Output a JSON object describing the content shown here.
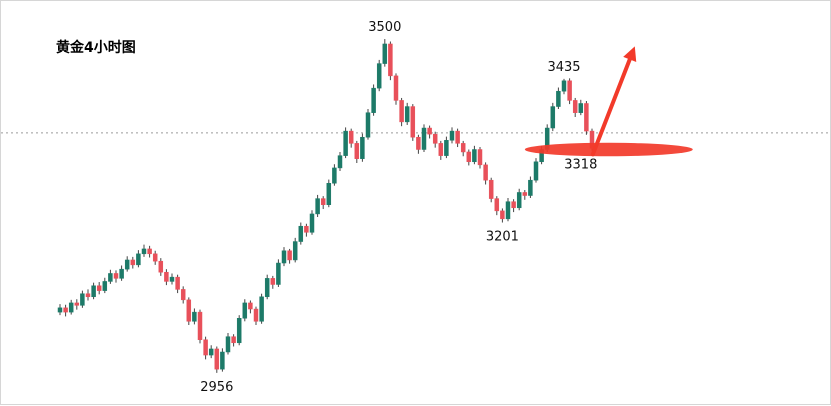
{
  "header": {
    "title": "黄金4小时图"
  },
  "chart_data": {
    "type": "candlestick",
    "title": "黄金4小时图",
    "ylim": [
      2902,
      3562
    ],
    "current_price_line": 3347,
    "colors": {
      "up": "#1d7a68",
      "down": "#e8505a",
      "wick": "#444444",
      "highlight": "#f23a2a",
      "dotted_line": "#9a9a9a",
      "label_text": "#111111"
    },
    "price_labels": [
      {
        "text": "3500",
        "candle": 58,
        "price": 3500,
        "position": "above"
      },
      {
        "text": "3435",
        "candle": 90,
        "price": 3435,
        "position": "above"
      },
      {
        "text": "3318",
        "candle": 93,
        "price": 3318,
        "position": "below"
      },
      {
        "text": "3201",
        "candle": 79,
        "price": 3201,
        "position": "below"
      },
      {
        "text": "2956",
        "candle": 28,
        "price": 2956,
        "position": "below"
      }
    ],
    "highlight": {
      "ellipse": {
        "center_candle": 98,
        "center_price": 3320,
        "rx_candles": 15,
        "ry_price": 11
      },
      "arrow": {
        "start_candle": 95.5,
        "start_price": 3312,
        "end_candle": 103,
        "end_price": 3488
      }
    },
    "candles": [
      [
        3055,
        3068,
        3050,
        3062
      ],
      [
        3062,
        3067,
        3048,
        3055
      ],
      [
        3055,
        3075,
        3051,
        3070
      ],
      [
        3070,
        3076,
        3059,
        3066
      ],
      [
        3066,
        3090,
        3062,
        3085
      ],
      [
        3085,
        3092,
        3074,
        3080
      ],
      [
        3080,
        3103,
        3076,
        3098
      ],
      [
        3098,
        3104,
        3084,
        3090
      ],
      [
        3090,
        3111,
        3086,
        3105
      ],
      [
        3105,
        3124,
        3101,
        3118
      ],
      [
        3118,
        3123,
        3103,
        3110
      ],
      [
        3110,
        3131,
        3106,
        3125
      ],
      [
        3125,
        3146,
        3121,
        3140
      ],
      [
        3140,
        3145,
        3126,
        3132
      ],
      [
        3132,
        3156,
        3128,
        3150
      ],
      [
        3150,
        3165,
        3145,
        3158
      ],
      [
        3158,
        3163,
        3144,
        3150
      ],
      [
        3150,
        3155,
        3132,
        3138
      ],
      [
        3138,
        3143,
        3114,
        3120
      ],
      [
        3120,
        3125,
        3099,
        3105
      ],
      [
        3105,
        3118,
        3100,
        3112
      ],
      [
        3112,
        3116,
        3086,
        3092
      ],
      [
        3092,
        3097,
        3069,
        3075
      ],
      [
        3075,
        3079,
        3034,
        3040
      ],
      [
        3040,
        3061,
        3035,
        3055
      ],
      [
        3055,
        3059,
        3004,
        3010
      ],
      [
        3010,
        3015,
        2978,
        2985
      ],
      [
        2985,
        3001,
        2980,
        2995
      ],
      [
        2995,
        2999,
        2956,
        2962
      ],
      [
        2962,
        2996,
        2958,
        2990
      ],
      [
        2990,
        3021,
        2986,
        3015
      ],
      [
        3015,
        3019,
        2999,
        3005
      ],
      [
        3005,
        3050,
        3001,
        3045
      ],
      [
        3045,
        3076,
        3040,
        3070
      ],
      [
        3070,
        3074,
        3053,
        3060
      ],
      [
        3060,
        3064,
        3034,
        3040
      ],
      [
        3040,
        3085,
        3036,
        3080
      ],
      [
        3080,
        3116,
        3076,
        3110
      ],
      [
        3110,
        3114,
        3093,
        3100
      ],
      [
        3100,
        3141,
        3096,
        3135
      ],
      [
        3135,
        3161,
        3130,
        3155
      ],
      [
        3155,
        3158,
        3134,
        3140
      ],
      [
        3140,
        3176,
        3136,
        3170
      ],
      [
        3170,
        3201,
        3165,
        3195
      ],
      [
        3195,
        3199,
        3178,
        3185
      ],
      [
        3185,
        3221,
        3181,
        3215
      ],
      [
        3215,
        3246,
        3210,
        3240
      ],
      [
        3240,
        3244,
        3223,
        3230
      ],
      [
        3230,
        3271,
        3226,
        3265
      ],
      [
        3265,
        3296,
        3261,
        3290
      ],
      [
        3290,
        3316,
        3285,
        3310
      ],
      [
        3310,
        3356,
        3306,
        3350
      ],
      [
        3350,
        3354,
        3323,
        3330
      ],
      [
        3330,
        3334,
        3298,
        3305
      ],
      [
        3305,
        3346,
        3300,
        3340
      ],
      [
        3340,
        3386,
        3336,
        3380
      ],
      [
        3380,
        3426,
        3375,
        3420
      ],
      [
        3420,
        3466,
        3415,
        3460
      ],
      [
        3460,
        3500,
        3455,
        3492
      ],
      [
        3492,
        3496,
        3433,
        3440
      ],
      [
        3440,
        3444,
        3393,
        3400
      ],
      [
        3400,
        3404,
        3358,
        3365
      ],
      [
        3365,
        3396,
        3360,
        3390
      ],
      [
        3390,
        3394,
        3334,
        3340
      ],
      [
        3340,
        3344,
        3313,
        3320
      ],
      [
        3320,
        3361,
        3316,
        3355
      ],
      [
        3355,
        3359,
        3338,
        3345
      ],
      [
        3345,
        3349,
        3323,
        3330
      ],
      [
        3330,
        3334,
        3303,
        3310
      ],
      [
        3310,
        3341,
        3306,
        3335
      ],
      [
        3335,
        3356,
        3330,
        3350
      ],
      [
        3350,
        3354,
        3324,
        3330
      ],
      [
        3330,
        3334,
        3309,
        3316
      ],
      [
        3316,
        3320,
        3294,
        3300
      ],
      [
        3300,
        3326,
        3296,
        3320
      ],
      [
        3320,
        3324,
        3289,
        3295
      ],
      [
        3295,
        3299,
        3263,
        3270
      ],
      [
        3270,
        3274,
        3234,
        3240
      ],
      [
        3240,
        3244,
        3213,
        3220
      ],
      [
        3220,
        3224,
        3201,
        3207
      ],
      [
        3207,
        3241,
        3203,
        3235
      ],
      [
        3235,
        3239,
        3218,
        3225
      ],
      [
        3225,
        3256,
        3221,
        3250
      ],
      [
        3250,
        3254,
        3238,
        3245
      ],
      [
        3245,
        3276,
        3241,
        3270
      ],
      [
        3270,
        3306,
        3266,
        3300
      ],
      [
        3300,
        3326,
        3296,
        3320
      ],
      [
        3320,
        3361,
        3316,
        3355
      ],
      [
        3355,
        3396,
        3350,
        3390
      ],
      [
        3390,
        3421,
        3386,
        3415
      ],
      [
        3415,
        3435,
        3410,
        3432
      ],
      [
        3432,
        3436,
        3394,
        3400
      ],
      [
        3400,
        3404,
        3373,
        3380
      ],
      [
        3380,
        3401,
        3376,
        3395
      ],
      [
        3395,
        3399,
        3344,
        3350
      ],
      [
        3350,
        3354,
        3318,
        3322
      ]
    ]
  }
}
